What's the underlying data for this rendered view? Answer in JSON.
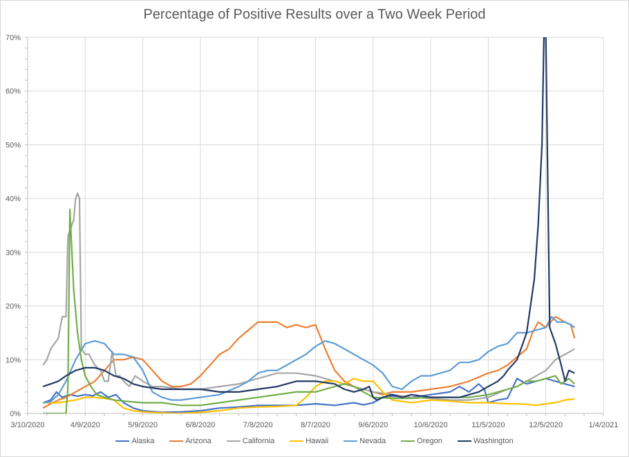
{
  "chart_data": {
    "type": "line",
    "title": "Percentage of Positive Results over a Two Week Period",
    "xlabel": "",
    "ylabel": "",
    "x_unit": "days since 3/10/2020",
    "xlim": [
      0,
      300
    ],
    "ylim": [
      0,
      70
    ],
    "grid": true,
    "legend_position": "bottom",
    "x_tick_labels": [
      "3/10/2020",
      "4/9/2020",
      "5/9/2020",
      "6/8/2020",
      "7/8/2020",
      "8/7/2020",
      "9/6/2020",
      "10/6/2020",
      "11/5/2020",
      "12/5/2020",
      "1/4/2021"
    ],
    "x_tick_values": [
      0,
      30,
      60,
      90,
      120,
      150,
      180,
      210,
      240,
      270,
      300
    ],
    "y_tick_labels": [
      "0%",
      "10%",
      "20%",
      "30%",
      "40%",
      "50%",
      "60%",
      "70%"
    ],
    "y_tick_values": [
      0,
      10,
      20,
      30,
      40,
      50,
      60,
      70
    ],
    "series": [
      {
        "name": "Alaska",
        "color": "#4472C4",
        "x": [
          8,
          12,
          15,
          18,
          22,
          26,
          30,
          34,
          38,
          42,
          46,
          50,
          55,
          60,
          70,
          80,
          90,
          100,
          110,
          120,
          130,
          140,
          150,
          160,
          170,
          175,
          180,
          185,
          190,
          200,
          210,
          220,
          225,
          230,
          235,
          238,
          240,
          245,
          250,
          255,
          260,
          265,
          270,
          275,
          280,
          285
        ],
        "y": [
          2,
          2.5,
          4,
          3,
          3.5,
          3.2,
          3.5,
          3.3,
          4,
          3,
          3.5,
          2,
          1,
          0.5,
          0.2,
          0.3,
          0.5,
          1,
          1.2,
          1.5,
          1.5,
          1.5,
          1.8,
          1.5,
          2,
          1.6,
          2,
          3,
          3.2,
          3,
          3.5,
          4,
          5,
          4,
          5.5,
          4.5,
          2,
          2.5,
          2.8,
          6.5,
          5.5,
          6,
          6.5,
          6,
          5.5,
          5
        ]
      },
      {
        "name": "Arizona",
        "color": "#ED7D31",
        "x": [
          8,
          12,
          16,
          20,
          25,
          30,
          35,
          40,
          45,
          50,
          55,
          60,
          65,
          70,
          75,
          80,
          85,
          90,
          95,
          100,
          105,
          110,
          115,
          120,
          125,
          130,
          135,
          140,
          145,
          150,
          155,
          160,
          165,
          170,
          175,
          180,
          185,
          190,
          200,
          210,
          220,
          230,
          240,
          245,
          250,
          255,
          260,
          263,
          266,
          270,
          275,
          280,
          283,
          285
        ],
        "y": [
          1,
          1.8,
          2.5,
          3,
          4,
          5,
          6,
          8,
          10,
          10,
          10.5,
          10,
          8,
          6,
          5,
          5,
          5.5,
          7,
          9,
          11,
          12,
          14,
          15.5,
          17,
          17,
          17,
          16,
          16.5,
          16,
          16.5,
          12,
          8,
          6,
          5,
          4.5,
          4,
          3.5,
          4,
          4,
          4.5,
          5,
          6,
          7.5,
          8,
          9,
          10.5,
          12,
          15,
          17,
          16,
          18,
          17,
          16.5,
          14
        ]
      },
      {
        "name": "California",
        "color": "#A5A5A5",
        "x": [
          8,
          10,
          12,
          14,
          16,
          18,
          20,
          21,
          22,
          24,
          25,
          26,
          27,
          28,
          30,
          32,
          35,
          38,
          40,
          42,
          44,
          46,
          48,
          50,
          53,
          56,
          60,
          65,
          70,
          80,
          90,
          100,
          110,
          120,
          130,
          140,
          150,
          160,
          170,
          180,
          190,
          200,
          210,
          220,
          230,
          240,
          250,
          255,
          260,
          265,
          270,
          275,
          280,
          285
        ],
        "y": [
          9,
          10,
          12,
          13,
          14,
          18,
          18,
          33,
          34,
          36,
          40,
          41,
          40,
          12,
          11,
          11,
          9,
          8,
          6,
          6,
          11.5,
          7,
          7,
          6,
          5,
          7,
          6,
          5,
          5,
          4.5,
          4.5,
          5,
          5.5,
          6.5,
          7.5,
          7.5,
          7,
          6,
          5,
          4,
          3.5,
          3,
          2.8,
          2.5,
          2.5,
          3,
          4.5,
          5,
          6,
          7,
          8,
          10,
          11,
          12
        ]
      },
      {
        "name": "Hawaii",
        "color": "#FFC000",
        "x": [
          8,
          12,
          16,
          20,
          25,
          30,
          35,
          40,
          45,
          50,
          55,
          60,
          70,
          80,
          90,
          100,
          110,
          120,
          130,
          140,
          145,
          150,
          155,
          160,
          165,
          170,
          175,
          180,
          185,
          190,
          200,
          210,
          220,
          230,
          240,
          250,
          255,
          260,
          265,
          270,
          275,
          280,
          285
        ],
        "y": [
          2,
          2,
          2,
          2.2,
          2.5,
          3,
          3,
          2.8,
          2.5,
          1,
          0.5,
          0.3,
          0.1,
          0,
          0.2,
          0.5,
          1,
          1.2,
          1.3,
          1.5,
          3,
          5,
          6,
          6,
          5.5,
          6.5,
          6,
          6,
          4,
          2.5,
          2,
          2.5,
          2.3,
          2,
          2,
          1.8,
          1.8,
          1.7,
          1.5,
          1.8,
          2,
          2.5,
          2.7
        ]
      },
      {
        "name": "Nevada",
        "color": "#5B9BD5",
        "x": [
          8,
          12,
          16,
          20,
          25,
          30,
          35,
          40,
          45,
          50,
          55,
          60,
          65,
          70,
          75,
          80,
          90,
          100,
          110,
          115,
          120,
          125,
          130,
          135,
          140,
          145,
          150,
          155,
          160,
          165,
          170,
          175,
          180,
          185,
          190,
          195,
          200,
          205,
          210,
          215,
          220,
          225,
          230,
          235,
          240,
          245,
          250,
          255,
          260,
          265,
          270,
          273,
          276,
          280,
          283,
          285
        ],
        "y": [
          2,
          2.2,
          3.5,
          6,
          10,
          13,
          13.5,
          13,
          11,
          11,
          10.5,
          8,
          4,
          3,
          2.5,
          2.5,
          3,
          3.5,
          5,
          6,
          7.5,
          8,
          8,
          9,
          10,
          11,
          12.5,
          13.5,
          13,
          12,
          11,
          10,
          9,
          7.5,
          5,
          4.5,
          6,
          7,
          7,
          7.5,
          8,
          9.5,
          9.5,
          10,
          11.5,
          12.5,
          13,
          15,
          15,
          15.5,
          16,
          18,
          17,
          17,
          16.5,
          16
        ]
      },
      {
        "name": "Oregon",
        "color": "#70AD47",
        "x": [
          8,
          12,
          16,
          19,
          20,
          21,
          22,
          24,
          26,
          28,
          30,
          33,
          36,
          40,
          45,
          50,
          60,
          70,
          80,
          90,
          100,
          110,
          120,
          130,
          140,
          150,
          160,
          165,
          170,
          175,
          180,
          190,
          200,
          210,
          220,
          230,
          240,
          250,
          255,
          260,
          265,
          270,
          275,
          278,
          280,
          282,
          285
        ],
        "y": [
          0,
          0,
          0,
          0,
          0,
          5,
          38,
          23,
          15,
          10,
          7,
          5,
          3.5,
          3,
          2.5,
          2.3,
          2,
          2,
          1.5,
          1.5,
          2,
          2.5,
          3,
          3.5,
          4,
          4,
          5,
          5.5,
          5,
          4,
          3,
          2.8,
          2.8,
          3,
          3,
          3,
          3.5,
          4.5,
          5,
          6,
          6,
          6.5,
          7,
          5.5,
          6,
          6.5,
          5.5
        ]
      },
      {
        "name": "Washington",
        "color": "#203864",
        "x": [
          8,
          12,
          16,
          20,
          25,
          30,
          35,
          40,
          45,
          50,
          55,
          60,
          70,
          80,
          90,
          100,
          110,
          120,
          130,
          140,
          150,
          160,
          165,
          170,
          175,
          178,
          180,
          182,
          185,
          190,
          195,
          200,
          210,
          220,
          225,
          230,
          235,
          240,
          245,
          248,
          250,
          255,
          258,
          260,
          262,
          264,
          266,
          268,
          269,
          270,
          272,
          275,
          278,
          280,
          282,
          285
        ],
        "y": [
          5,
          5.5,
          6,
          7,
          8,
          8.5,
          8.5,
          8,
          7,
          6.5,
          5.5,
          5,
          4.5,
          4.5,
          4.5,
          4,
          4,
          4.5,
          5,
          6,
          6,
          5.5,
          4.5,
          4,
          4.5,
          5,
          3,
          2.5,
          3,
          3.5,
          3,
          3.5,
          3,
          3,
          3,
          3.5,
          4,
          5,
          6,
          7,
          8,
          10,
          13,
          15,
          20,
          25,
          35,
          50,
          70,
          70,
          16,
          13,
          9,
          6,
          8,
          7.5
        ]
      }
    ]
  }
}
